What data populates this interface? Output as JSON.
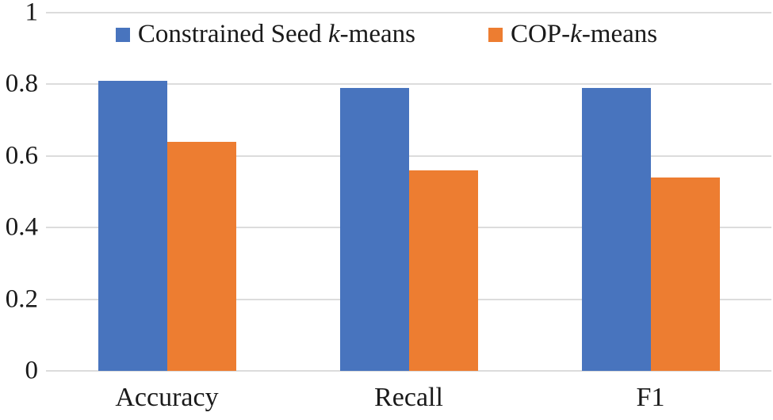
{
  "chart_data": {
    "type": "bar",
    "title": "",
    "xlabel": "",
    "ylabel": "",
    "categories": [
      "Accuracy",
      "Recall",
      "F1"
    ],
    "series": [
      {
        "name": "Constrained Seed k-means",
        "label_parts": [
          "Constrained Seed ",
          "k",
          "-means"
        ],
        "color": "#4874BE",
        "values": [
          0.81,
          0.79,
          0.79
        ]
      },
      {
        "name": "COP-k-means",
        "label_parts": [
          "COP-",
          "k",
          "-means"
        ],
        "color": "#ED7D31",
        "values": [
          0.64,
          0.56,
          0.54
        ]
      }
    ],
    "ylim": [
      0,
      1
    ],
    "yticks": [
      {
        "value": 0,
        "label": "0"
      },
      {
        "value": 0.2,
        "label": "0.2"
      },
      {
        "value": 0.4,
        "label": "0.4"
      },
      {
        "value": 0.6,
        "label": "0.6"
      },
      {
        "value": 0.8,
        "label": "0.8"
      },
      {
        "value": 1,
        "label": "1"
      }
    ],
    "grid": true,
    "legend_position": "top",
    "gridline_color": "#DCDCDC",
    "text_color": "#1A1A1A",
    "background_color": "#FFFFFF"
  }
}
